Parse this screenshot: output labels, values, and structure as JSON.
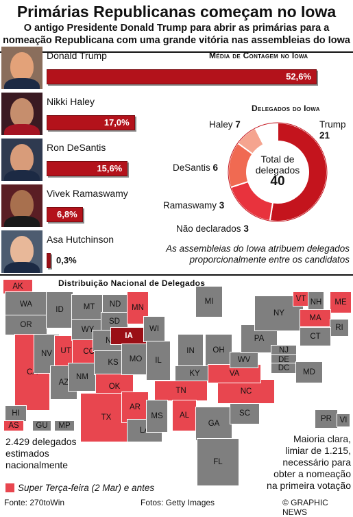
{
  "title": "Primárias Republicanas começam no Iowa",
  "subtitle": [
    "O antigo Presidente Donald Trump para abrir as primárias para a",
    "nomeação Republicana com uma grande vitória nas assembleias do Iowa"
  ],
  "colors": {
    "bar": "#b3121b",
    "super_tuesday": "#e8464f",
    "other_state": "#7f7f7f",
    "iowa": "#9a0f16"
  },
  "chart_data": [
    {
      "type": "bar",
      "title": "Média de Contagem no Iowa",
      "categories": [
        "Donald Trump",
        "Nikki Haley",
        "Ron DeSantis",
        "Vivek Ramaswamy",
        "Asa Hutchinson"
      ],
      "values": [
        52.6,
        17.0,
        15.6,
        6.8,
        0.3
      ],
      "labels": [
        "52,6%",
        "17,0%",
        "15,6%",
        "6,8%",
        "0,3%"
      ],
      "unit": "%"
    },
    {
      "type": "pie",
      "title": "Delegados do Iowa",
      "center_label": [
        "Total de",
        "delegados"
      ],
      "total": 40,
      "slices": [
        {
          "name": "Trump",
          "value": 21,
          "color": "#c4141d"
        },
        {
          "name": "Haley",
          "value": 7,
          "color": "#e8333d"
        },
        {
          "name": "DeSantis",
          "value": 6,
          "color": "#f06a52"
        },
        {
          "name": "Ramaswamy",
          "value": 3,
          "color": "#f5a48f"
        },
        {
          "name": "Não declarados",
          "value": 3,
          "color": "#ffffff"
        }
      ],
      "note": [
        "As assembleias do Iowa atribuem delegados",
        "proporcionalmente entre os candidatos"
      ]
    }
  ],
  "map": {
    "title": "Distribuição Nacional de Delegados",
    "super_tuesday_states": [
      "AK",
      "CA",
      "UT",
      "CO",
      "TX",
      "OK",
      "AR",
      "TN",
      "AL",
      "NC",
      "VA",
      "MN",
      "MA",
      "VT",
      "ME",
      "AS"
    ],
    "labels": {
      "AK": "AK",
      "HI": "HI",
      "WA": "WA",
      "OR": "OR",
      "ID": "ID",
      "NV": "NV",
      "UT": "UT",
      "CA": "CA",
      "AZ": "AZ",
      "MT": "MT",
      "WY": "WY",
      "CO": "CO",
      "NM": "NM",
      "ND": "ND",
      "SD": "SD",
      "NE": "NE",
      "KS": "KS",
      "OK": "OK",
      "TX": "TX",
      "MN": "MN",
      "IA": "IA",
      "MO": "MO",
      "AR": "AR",
      "LA": "LA",
      "WI": "WI",
      "IL": "IL",
      "MI": "MI",
      "IN": "IN",
      "OH": "OH",
      "KY": "KY",
      "TN": "TN",
      "MS": "MS",
      "AL": "AL",
      "GA": "GA",
      "FL": "FL",
      "SC": "SC",
      "NC": "NC",
      "VA": "VA",
      "WV": "WV",
      "PA": "PA",
      "NY": "NY",
      "VT": "VT",
      "NH": "NH",
      "ME": "ME",
      "MA": "MA",
      "RI": "RI",
      "CT": "CT",
      "NJ": "NJ",
      "DE": "DE",
      "DC": "DC",
      "MD": "MD",
      "PR": "PR",
      "VI": "VI",
      "AS": "AS",
      "GU": "GU",
      "MP": "MP"
    }
  },
  "footer": {
    "left": [
      "2.429 delegados",
      "estimados",
      "nacionalmente"
    ],
    "right": [
      "Maioria clara,",
      "limiar de 1.215,",
      "necessário para",
      "obter a nomeação",
      "na primeira votação"
    ],
    "legend": "Super Terça-feira (2 Mar) e antes",
    "source": "Fonte: 270toWin",
    "photos": "Fotos: Getty Images",
    "copyright": "© GRAPHIC NEWS"
  }
}
